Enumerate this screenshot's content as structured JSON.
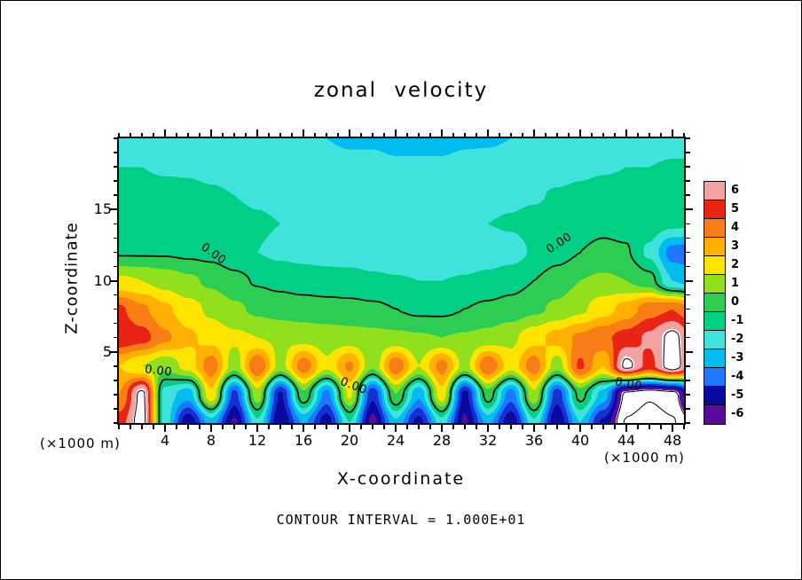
{
  "title": "zonal velocity",
  "axes": {
    "x_label": "X-coordinate",
    "y_label": "Z-coordinate",
    "x_unit": "(×1000 m)",
    "y_unit": "(×1000 m)",
    "x_tick_labels": [
      4,
      8,
      12,
      16,
      20,
      24,
      28,
      32,
      36,
      40,
      44,
      48
    ],
    "y_tick_labels": [
      5,
      10,
      15
    ],
    "x_range": [
      0,
      49
    ],
    "z_range": [
      0,
      20
    ]
  },
  "footer_text": "CONTOUR INTERVAL = 1.000E+01",
  "contour_label_text": "0.00",
  "colorbar": {
    "tick_labels": [
      "6",
      "5",
      "4",
      "3",
      "2",
      "1",
      "0",
      "-1",
      "-2",
      "-3",
      "-4",
      "-5",
      "-6"
    ],
    "colors": [
      "#f2a2a2",
      "#ea2414",
      "#f87d14",
      "#ffb000",
      "#ffe400",
      "#90e01e",
      "#2ccd52",
      "#00cf86",
      "#3fe3dc",
      "#00bdf0",
      "#1e78ff",
      "#0a0aa0",
      "#5a0b9e"
    ]
  },
  "chart_data": {
    "type": "heatmap",
    "title": "zonal velocity",
    "xlabel": "X-coordinate (×1000 m)",
    "ylabel": "Z-coordinate (×1000 m)",
    "contour_interval": 10,
    "labeled_contour_level": 0,
    "colorbar_ticks": [
      6,
      5,
      4,
      3,
      2,
      1,
      0,
      -1,
      -2,
      -3,
      -4,
      -5,
      -6
    ],
    "x_km": [
      0,
      2,
      4,
      6,
      8,
      10,
      12,
      14,
      16,
      18,
      20,
      22,
      24,
      26,
      28,
      30,
      32,
      34,
      36,
      38,
      40,
      42,
      44,
      46,
      48,
      50
    ],
    "z_km": [
      20,
      18,
      16,
      14,
      12,
      10,
      8,
      6,
      4,
      2,
      0
    ],
    "values": [
      [
        -1.4,
        -1.4,
        -1.5,
        -1.5,
        -1.6,
        -1.7,
        -1.8,
        -1.9,
        -2.0,
        -2.0,
        -2.1,
        -2.1,
        -2.2,
        -2.2,
        -2.2,
        -2.1,
        -2.1,
        -2.0,
        -1.9,
        -1.8,
        -1.7,
        -1.6,
        -1.5,
        -1.5,
        -1.4,
        -1.4
      ],
      [
        -1.0,
        -1.0,
        -1.1,
        -1.1,
        -1.2,
        -1.3,
        -1.4,
        -1.5,
        -1.6,
        -1.7,
        -1.8,
        -1.8,
        -1.9,
        -1.9,
        -1.9,
        -1.8,
        -1.7,
        -1.6,
        -1.5,
        -1.4,
        -1.2,
        -1.1,
        -1.0,
        -1.0,
        -0.9,
        -0.9
      ],
      [
        -0.7,
        -0.7,
        -0.7,
        -0.8,
        -0.9,
        -1.0,
        -1.1,
        -1.2,
        -1.3,
        -1.4,
        -1.5,
        -1.5,
        -1.6,
        -1.6,
        -1.5,
        -1.4,
        -1.3,
        -1.2,
        -1.1,
        -0.9,
        -0.8,
        -0.6,
        -0.6,
        -0.6,
        -0.7,
        -0.7
      ],
      [
        -0.4,
        -0.4,
        -0.4,
        -0.5,
        -0.6,
        -0.8,
        -0.9,
        -1.0,
        -1.1,
        -1.2,
        -1.2,
        -1.3,
        -1.3,
        -1.3,
        -1.2,
        -1.1,
        -1.0,
        -0.9,
        -0.7,
        -0.5,
        -0.3,
        -0.2,
        -0.3,
        -0.5,
        -0.8,
        -0.9
      ],
      [
        -0.1,
        -0.1,
        -0.1,
        -0.2,
        -0.3,
        -0.7,
        -1.0,
        -1.2,
        -1.3,
        -1.4,
        -1.5,
        -1.6,
        -1.8,
        -1.9,
        -1.9,
        -1.8,
        -1.6,
        -1.4,
        -0.9,
        -0.4,
        0.0,
        0.2,
        0.1,
        -1.2,
        -3.4,
        -3.6
      ],
      [
        2.2,
        2.0,
        1.6,
        1.2,
        0.8,
        0.3,
        -0.1,
        -0.3,
        -0.5,
        -0.6,
        -0.6,
        -0.8,
        -0.9,
        -1.0,
        -1.0,
        -0.9,
        -0.7,
        -0.4,
        0.0,
        0.5,
        1.0,
        1.2,
        1.0,
        0.4,
        -2.0,
        -2.6
      ],
      [
        5.2,
        4.2,
        3.2,
        2.4,
        1.8,
        1.2,
        0.8,
        0.6,
        0.5,
        0.4,
        0.3,
        0.2,
        0.0,
        -0.2,
        -0.2,
        0.0,
        0.2,
        0.4,
        0.8,
        1.2,
        1.8,
        2.6,
        3.4,
        4.6,
        5.0,
        4.0
      ],
      [
        5.8,
        5.4,
        4.2,
        3.2,
        2.6,
        2.2,
        2.0,
        1.8,
        1.6,
        1.5,
        1.4,
        1.3,
        1.2,
        1.1,
        1.0,
        1.1,
        1.3,
        1.8,
        2.6,
        3.4,
        4.2,
        4.8,
        5.4,
        6.2,
        7.6,
        5.6
      ],
      [
        3.0,
        2.0,
        1.2,
        2.4,
        4.6,
        1.4,
        5.0,
        1.6,
        4.6,
        2.2,
        4.2,
        1.2,
        4.8,
        2.0,
        4.4,
        1.6,
        5.0,
        2.4,
        4.6,
        1.4,
        5.2,
        3.0,
        7.6,
        5.6,
        8.0,
        5.2
      ],
      [
        4.0,
        7.6,
        -1.5,
        -2.6,
        2.8,
        -4.4,
        1.6,
        -5.2,
        0.8,
        -3.4,
        2.2,
        -4.8,
        1.0,
        -2.8,
        2.6,
        -5.4,
        0.6,
        -3.6,
        1.8,
        -4.6,
        0.4,
        -2.4,
        -7.6,
        -8.2,
        -7.8,
        -4.0
      ],
      [
        5.5,
        7.8,
        -1.5,
        -5.8,
        -2.4,
        -6.2,
        -1.2,
        -6.0,
        -2.8,
        -5.6,
        -1.0,
        -6.4,
        -2.2,
        -5.4,
        -1.4,
        -6.2,
        -2.6,
        -5.8,
        -1.2,
        -6.0,
        -2.0,
        -5.2,
        -8.4,
        -8.8,
        -8.4,
        -6.8
      ]
    ],
    "palette": [
      {
        "min": 7,
        "color": "#ffffff"
      },
      {
        "min": 6,
        "color": "#f2a2a2"
      },
      {
        "min": 5,
        "color": "#ea2414"
      },
      {
        "min": 4,
        "color": "#f87d14"
      },
      {
        "min": 3,
        "color": "#ffb000"
      },
      {
        "min": 2,
        "color": "#ffe400"
      },
      {
        "min": 1,
        "color": "#90e01e"
      },
      {
        "min": 0,
        "color": "#2ccd52"
      },
      {
        "min": -1,
        "color": "#00cf86"
      },
      {
        "min": -2,
        "color": "#3fe3dc"
      },
      {
        "min": -3,
        "color": "#00bdf0"
      },
      {
        "min": -4,
        "color": "#1e78ff"
      },
      {
        "min": -5,
        "color": "#1432d2"
      },
      {
        "min": -6,
        "color": "#0a0aa0"
      },
      {
        "min": -7,
        "color": "#5a0b9e"
      },
      {
        "min": -999,
        "color": "#ffffff"
      }
    ],
    "contour_render_levels": [
      {
        "level": 0,
        "style": "solid"
      },
      {
        "level": 7.2,
        "style": "solid"
      },
      {
        "level": -7.2,
        "style": "dashed"
      },
      {
        "level": -8.3,
        "style": "dashed"
      }
    ]
  }
}
